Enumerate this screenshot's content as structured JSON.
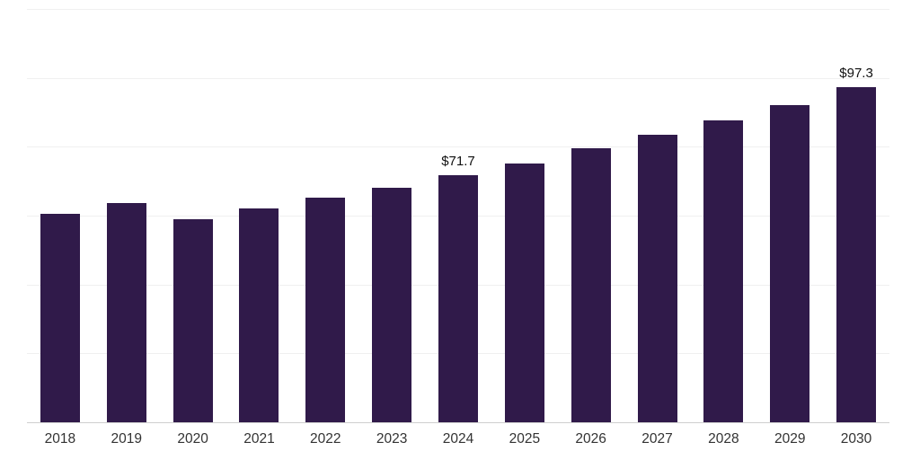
{
  "chart_data": {
    "type": "bar",
    "title": "",
    "xlabel": "",
    "ylabel": "",
    "categories": [
      "2018",
      "2019",
      "2020",
      "2021",
      "2022",
      "2023",
      "2024",
      "2025",
      "2026",
      "2027",
      "2028",
      "2029",
      "2030"
    ],
    "values": [
      60.6,
      63.6,
      59.0,
      62.1,
      65.2,
      68.2,
      71.7,
      75.1,
      79.5,
      83.6,
      87.7,
      92.0,
      97.3
    ],
    "value_labels": {
      "2024": "$71.7",
      "2030": "$97.3"
    },
    "ylim": [
      0,
      120
    ],
    "gridline_step": 20,
    "grid": "horizontal",
    "legend": "none",
    "bar_color": "#301a4a",
    "value_label_color": "#111111",
    "axis_label_color": "#333333",
    "gridline_color": "#f0f0f0",
    "baseline_color": "#cfcfcf"
  }
}
